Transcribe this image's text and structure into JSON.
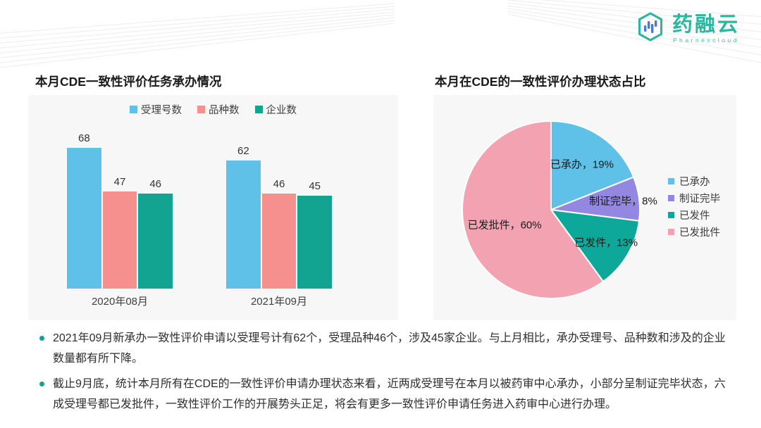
{
  "logo": {
    "name": "药融云",
    "subtitle": "Pharnexcloud",
    "brand_color": "#2bb6a0"
  },
  "chart_data": [
    {
      "type": "bar",
      "title": "本月CDE一致性评价任务承办情况",
      "categories": [
        "2020年08月",
        "2021年09月"
      ],
      "series": [
        {
          "name": "受理号数",
          "color": "#5fc0e8",
          "values": [
            68,
            62
          ]
        },
        {
          "name": "品种数",
          "color": "#f5908e",
          "values": [
            47,
            46
          ]
        },
        {
          "name": "企业数",
          "color": "#12a391",
          "values": [
            46,
            45
          ]
        }
      ],
      "ylim": [
        0,
        75
      ],
      "grid": false,
      "legend_position": "top",
      "value_labels": true
    },
    {
      "type": "pie",
      "title": "本月在CDE的一致性评价办理状态占比",
      "slices": [
        {
          "name": "已承办",
          "value": 19,
          "label": "已承办，19%",
          "color": "#5fc0e8"
        },
        {
          "name": "制证完毕",
          "value": 8,
          "label": "制证完毕，8%",
          "color": "#9487e2"
        },
        {
          "name": "已发件",
          "value": 13,
          "label": "已发件，13%",
          "color": "#0ea89a"
        },
        {
          "name": "已发批件",
          "value": 60,
          "label": "已发批件，60%",
          "color": "#f2a2b1"
        }
      ],
      "start_angle_deg": 0,
      "direction": "clockwise",
      "legend_position": "right"
    }
  ],
  "notes": [
    "2021年09月新承办一致性评价申请以受理号计有62个，受理品种46个，涉及45家企业。与上月相比，承办受理号、品种数和涉及的企业数量都有所下降。",
    "截止9月底，统计本月所有在CDE的一致性评价申请办理状态来看，近两成受理号在本月以被药审中心承办，小部分呈制证完毕状态，六成受理号都已发批件，一致性评价工作的开展势头正足，将会有更多一致性评价申请任务进入药审中心进行办理。"
  ]
}
